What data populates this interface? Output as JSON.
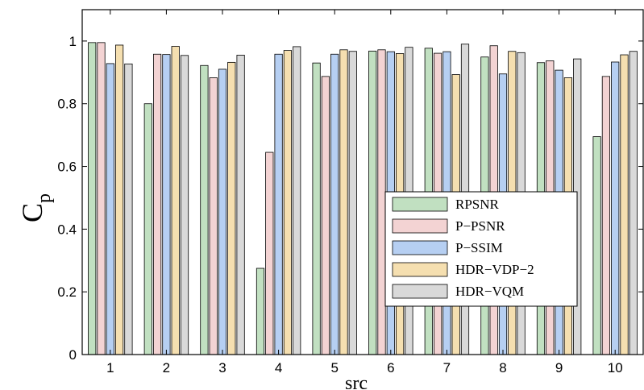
{
  "chart_data": {
    "type": "bar",
    "title": "",
    "xlabel": "src",
    "ylabel": "C",
    "ylabel_subscript": "p",
    "categories": [
      "1",
      "2",
      "3",
      "4",
      "5",
      "6",
      "7",
      "8",
      "9",
      "10"
    ],
    "ylim": [
      0,
      1.1
    ],
    "yticks": [
      "0",
      "0.2",
      "0.4",
      "0.6",
      "0.8",
      "1"
    ],
    "grid": false,
    "legend_position": "lower-right",
    "series": [
      {
        "name": "RPSNR",
        "color": "#c1e0c1",
        "values": [
          0.995,
          0.8,
          0.922,
          0.275,
          0.93,
          0.968,
          0.977,
          0.949,
          0.931,
          0.695
        ]
      },
      {
        "name": "P−PSNR",
        "color": "#f3d3d3",
        "values": [
          0.995,
          0.958,
          0.883,
          0.645,
          0.887,
          0.972,
          0.961,
          0.985,
          0.937,
          0.887
        ]
      },
      {
        "name": "P−SSIM",
        "color": "#b6cff2",
        "values": [
          0.928,
          0.957,
          0.91,
          0.958,
          0.958,
          0.966,
          0.966,
          0.895,
          0.907,
          0.933
        ]
      },
      {
        "name": "HDR−VDP−2",
        "color": "#f5dfb0",
        "values": [
          0.987,
          0.983,
          0.932,
          0.97,
          0.972,
          0.96,
          0.893,
          0.967,
          0.883,
          0.956
        ]
      },
      {
        "name": "HDR−VQM",
        "color": "#d9d9d9",
        "values": [
          0.927,
          0.954,
          0.955,
          0.982,
          0.967,
          0.98,
          0.99,
          0.963,
          0.943,
          0.967
        ]
      }
    ]
  }
}
